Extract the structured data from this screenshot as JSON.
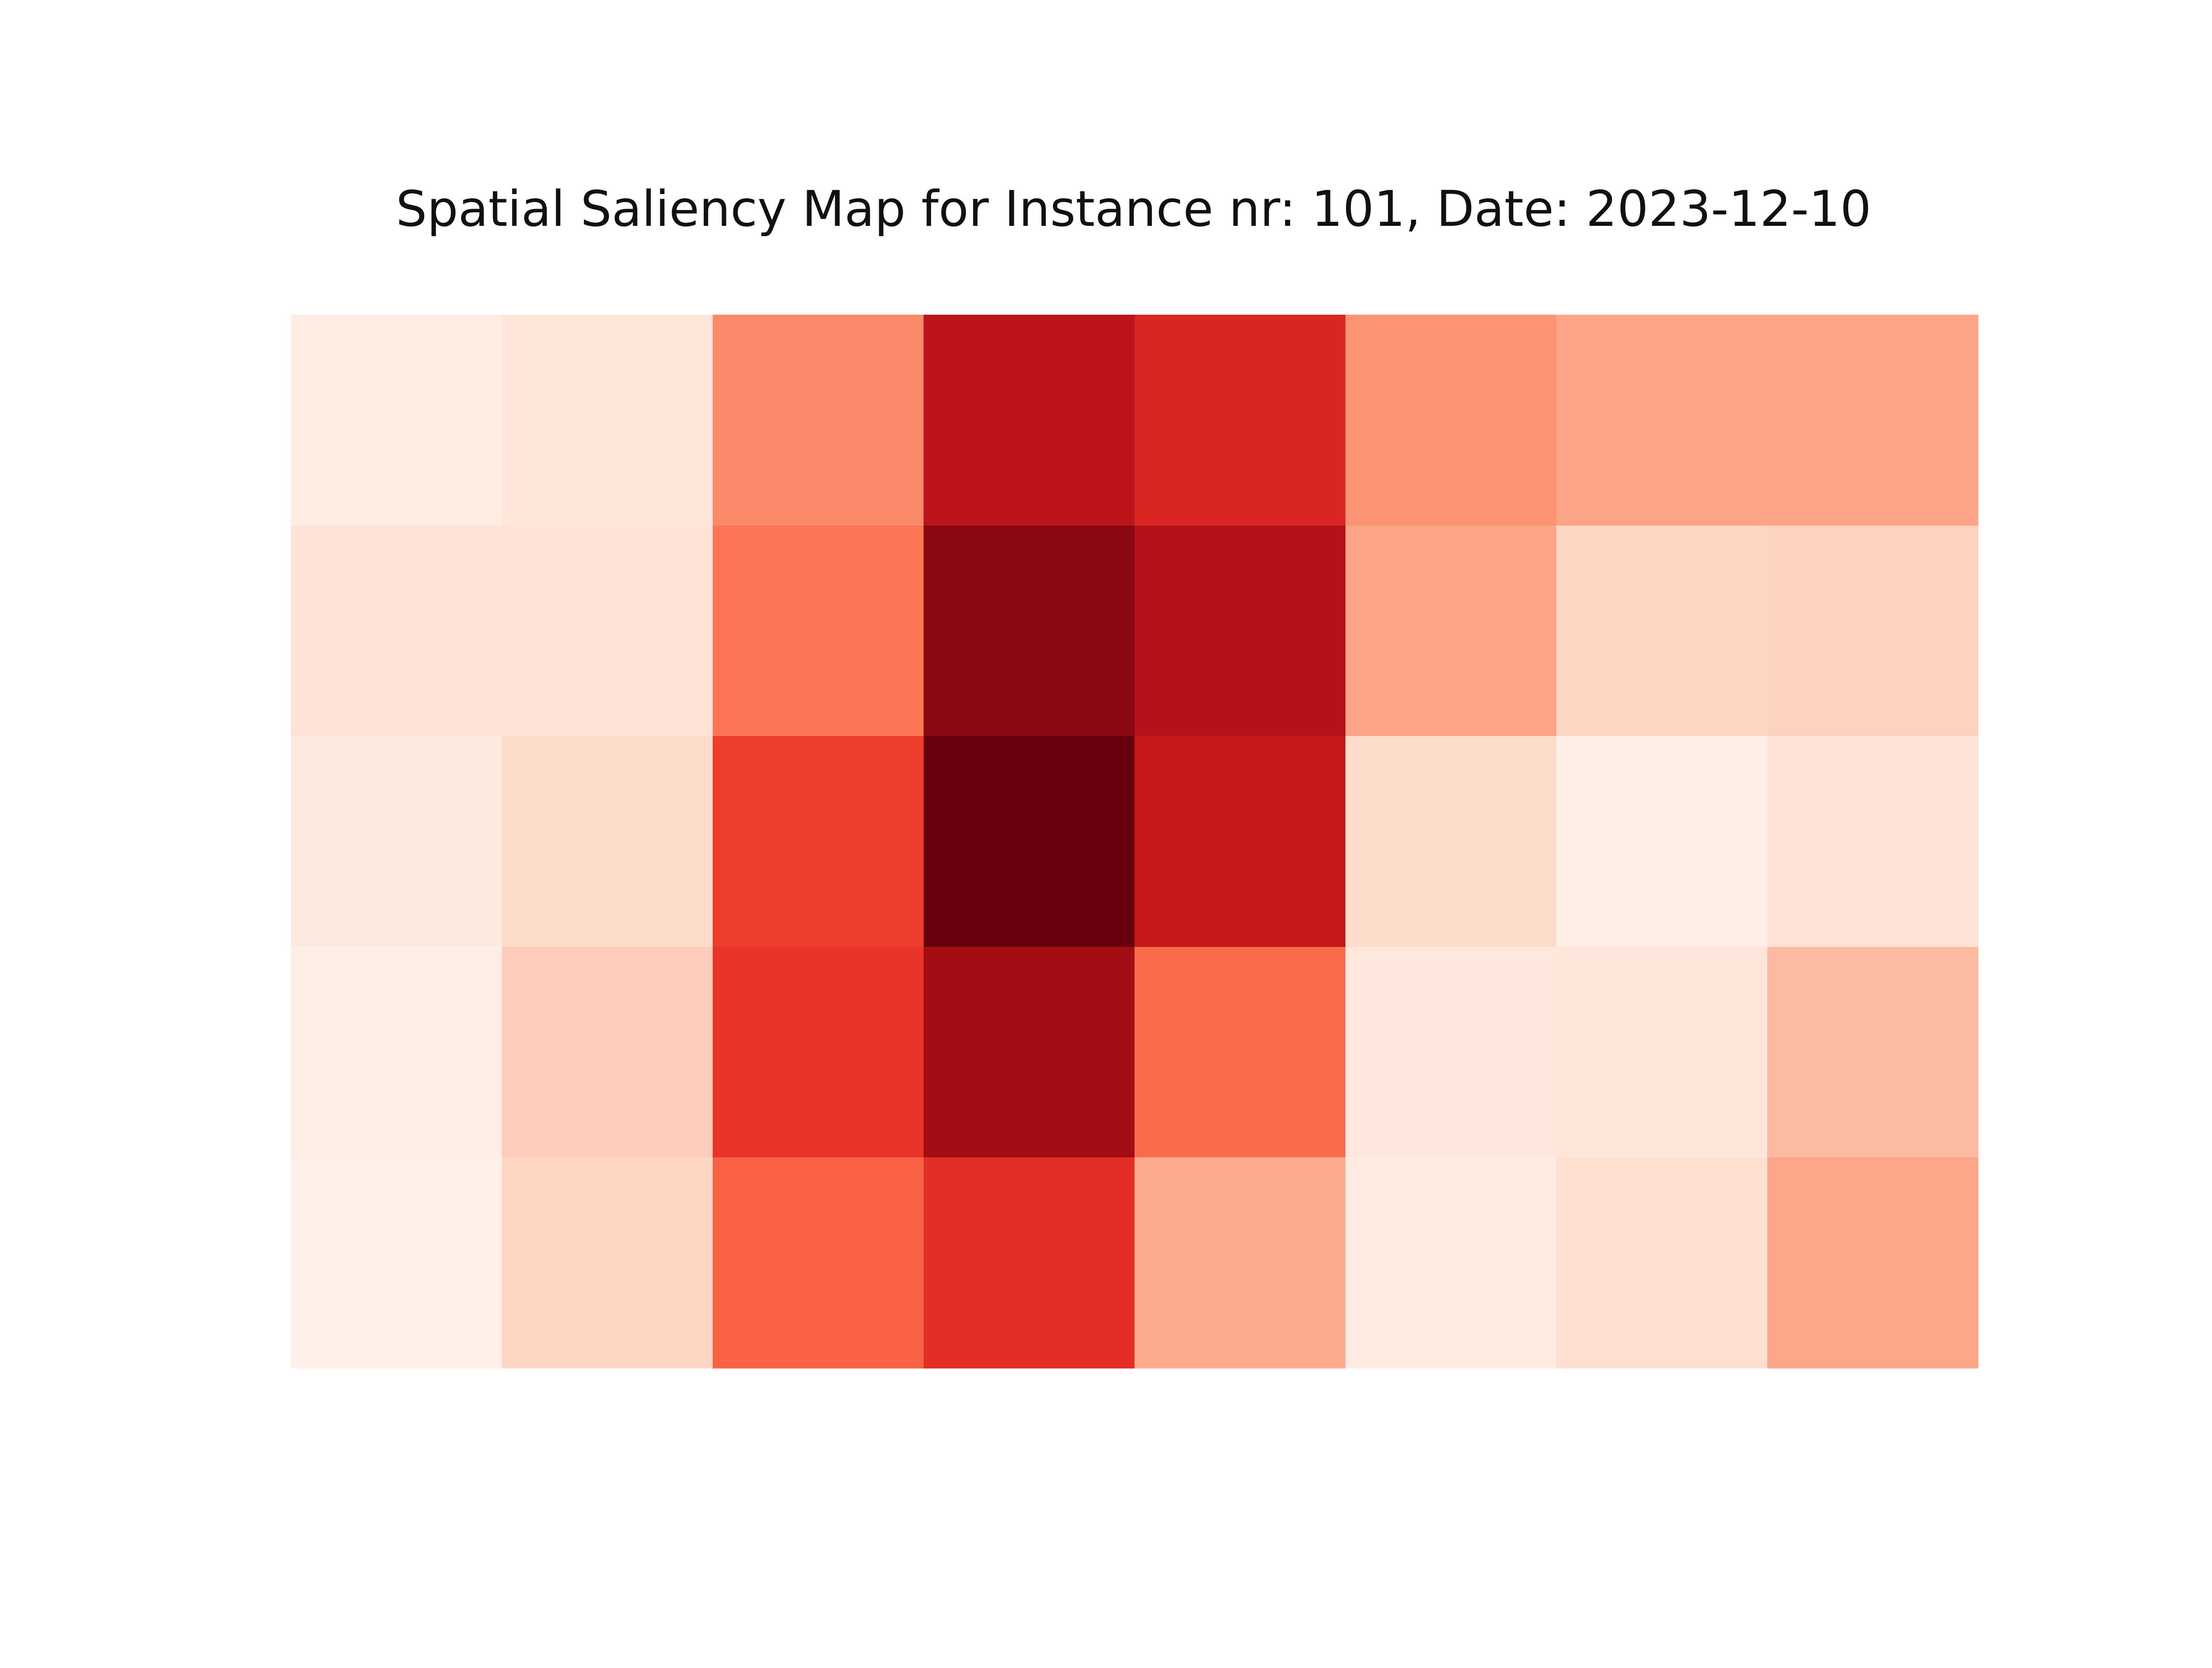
{
  "chart_data": {
    "type": "heatmap",
    "title": "Spatial Saliency Map for Instance nr: 101, Date: 2023-12-10",
    "colormap": "Reds",
    "axes_visible": false,
    "colorbar": false,
    "rows": 5,
    "cols": 8,
    "value_range": [
      0,
      1
    ],
    "values": [
      [
        0.05,
        0.09,
        0.4,
        0.8,
        0.7,
        0.37,
        0.32,
        0.32
      ],
      [
        0.11,
        0.11,
        0.47,
        0.93,
        0.83,
        0.32,
        0.16,
        0.17
      ],
      [
        0.07,
        0.14,
        0.62,
        1.0,
        0.76,
        0.14,
        0.04,
        0.11
      ],
      [
        0.04,
        0.19,
        0.65,
        0.88,
        0.5,
        0.08,
        0.09,
        0.25
      ],
      [
        0.03,
        0.16,
        0.52,
        0.67,
        0.3,
        0.06,
        0.13,
        0.31
      ]
    ]
  }
}
